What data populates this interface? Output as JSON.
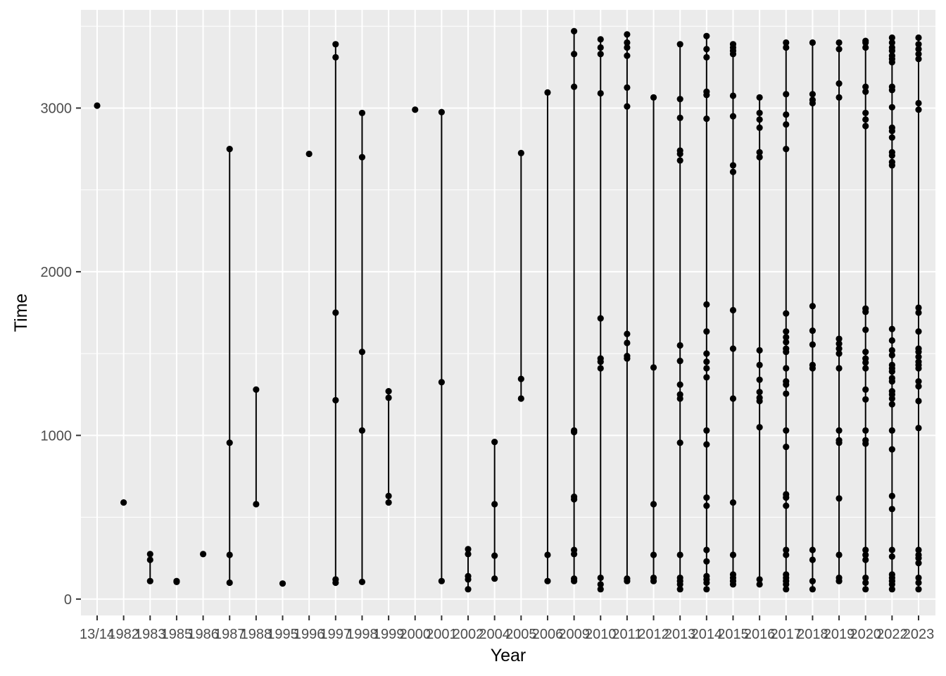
{
  "chart_data": {
    "type": "scatter",
    "xlabel": "Year",
    "ylabel": "Time",
    "ylim": [
      -100,
      3600
    ],
    "yticks": [
      0,
      1000,
      2000,
      3000
    ],
    "grid": true,
    "categories": [
      "13/14",
      "1982",
      "1983",
      "1985",
      "1986",
      "1987",
      "1988",
      "1995",
      "1996",
      "1997",
      "1998",
      "1999",
      "2000",
      "2001",
      "2002",
      "2004",
      "2005",
      "2006",
      "2009",
      "2010",
      "2011",
      "2012",
      "2013",
      "2014",
      "2015",
      "2016",
      "2017",
      "2018",
      "2019",
      "2020",
      "2022",
      "2023"
    ],
    "points": [
      [
        3015
      ],
      [
        590
      ],
      [
        110,
        240,
        275
      ],
      [
        105,
        110
      ],
      [
        275
      ],
      [
        100,
        270,
        955,
        2750
      ],
      [
        580,
        1280
      ],
      [
        95
      ],
      [
        2720
      ],
      [
        100,
        120,
        1215,
        1750,
        3310,
        3390
      ],
      [
        105,
        1030,
        1510,
        2700,
        2970
      ],
      [
        590,
        630,
        1230,
        1270
      ],
      [
        2990
      ],
      [
        110,
        1325,
        2975
      ],
      [
        60,
        120,
        140,
        275,
        305
      ],
      [
        125,
        265,
        580,
        960
      ],
      [
        1225,
        1345,
        2725
      ],
      [
        110,
        270,
        3095
      ],
      [
        110,
        125,
        275,
        300,
        610,
        625,
        1020,
        1030,
        3130,
        3330,
        3470
      ],
      [
        60,
        90,
        130,
        1410,
        1450,
        1470,
        1715,
        3090,
        3330,
        3370,
        3420
      ],
      [
        110,
        125,
        1470,
        1485,
        1565,
        1620,
        3010,
        3125,
        3320,
        3370,
        3400,
        3450
      ],
      [
        110,
        130,
        270,
        580,
        1415,
        3065
      ],
      [
        60,
        90,
        110,
        130,
        270,
        955,
        1225,
        1250,
        1310,
        1455,
        1550,
        2680,
        2720,
        2740,
        2940,
        3055,
        3390
      ],
      [
        60,
        100,
        120,
        140,
        230,
        300,
        570,
        620,
        945,
        1030,
        1355,
        1410,
        1450,
        1500,
        1635,
        1800,
        2935,
        3080,
        3100,
        3310,
        3360,
        3440
      ],
      [
        90,
        110,
        130,
        150,
        270,
        590,
        1225,
        1530,
        1765,
        2610,
        2650,
        2950,
        3075,
        3330,
        3350,
        3370,
        3390
      ],
      [
        90,
        120,
        1050,
        1210,
        1230,
        1265,
        1340,
        1430,
        1520,
        2700,
        2730,
        2880,
        2930,
        2970,
        3065
      ],
      [
        60,
        90,
        110,
        130,
        150,
        270,
        300,
        570,
        620,
        640,
        930,
        1030,
        1255,
        1310,
        1330,
        1410,
        1510,
        1530,
        1570,
        1600,
        1635,
        1745,
        2750,
        2900,
        2960,
        3085,
        3370,
        3400
      ],
      [
        60,
        110,
        240,
        300,
        1410,
        1430,
        1555,
        1640,
        1790,
        3030,
        3050,
        3085,
        3400
      ],
      [
        110,
        130,
        270,
        615,
        955,
        970,
        1030,
        1410,
        1500,
        1530,
        1560,
        1590,
        3065,
        3150,
        3360,
        3400
      ],
      [
        60,
        100,
        130,
        240,
        270,
        300,
        950,
        970,
        1030,
        1220,
        1280,
        1410,
        1445,
        1470,
        1510,
        1645,
        1755,
        1775,
        2890,
        2930,
        2970,
        3100,
        3130,
        3370,
        3400,
        3410
      ],
      [
        60,
        90,
        110,
        130,
        150,
        260,
        300,
        550,
        630,
        915,
        1030,
        1190,
        1225,
        1250,
        1270,
        1330,
        1350,
        1390,
        1410,
        1430,
        1490,
        1520,
        1580,
        1650,
        2650,
        2670,
        2710,
        2730,
        2820,
        2860,
        2880,
        3005,
        3110,
        3130,
        3280,
        3300,
        3320,
        3350,
        3370,
        3400,
        3430
      ],
      [
        60,
        100,
        130,
        220,
        250,
        270,
        300,
        1045,
        1210,
        1300,
        1330,
        1410,
        1430,
        1450,
        1480,
        1510,
        1530,
        1635,
        1750,
        1780,
        2990,
        3030,
        3300,
        3330,
        3360,
        3390,
        3430
      ]
    ]
  }
}
